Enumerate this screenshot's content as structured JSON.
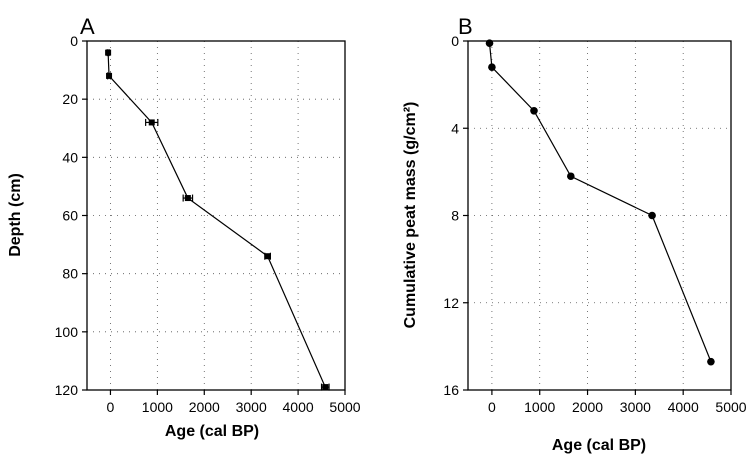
{
  "chart_data": [
    {
      "type": "line",
      "panel_label": "A",
      "xlabel": "Age (cal  BP)",
      "ylabel": "Depth (cm)",
      "xlim": [
        -500,
        5000
      ],
      "ylim": [
        0,
        120
      ],
      "y_inverted": true,
      "x_ticks": [
        0,
        1000,
        2000,
        3000,
        4000,
        5000
      ],
      "y_ticks": [
        0,
        20,
        40,
        60,
        80,
        100,
        120
      ],
      "x_tick_labels": [
        "0",
        "1000",
        "2000",
        "3000",
        "4000",
        "5000"
      ],
      "y_tick_labels": [
        "0",
        "20",
        "40",
        "60",
        "80",
        "100",
        "120"
      ],
      "grid": true,
      "marker": "square",
      "series": [
        {
          "x": [
            -50,
            -30,
            880,
            1650,
            3350,
            4580
          ],
          "y": [
            4,
            12,
            28,
            54,
            74,
            119
          ],
          "x_error": [
            20,
            30,
            130,
            100,
            60,
            80
          ]
        }
      ]
    },
    {
      "type": "line",
      "panel_label": "B",
      "xlabel": "Age (cal BP)",
      "ylabel": "Cumulative peat mass (g/cm²)",
      "xlim": [
        -500,
        5000
      ],
      "ylim": [
        0,
        16
      ],
      "y_inverted": true,
      "x_ticks": [
        0,
        1000,
        2000,
        3000,
        4000,
        5000
      ],
      "y_ticks": [
        0,
        4,
        8,
        12,
        16
      ],
      "x_tick_labels": [
        "0",
        "1000",
        "2000",
        "3000",
        "4000",
        "5000"
      ],
      "y_tick_labels": [
        "0",
        "4",
        "8",
        "12",
        "16"
      ],
      "grid": true,
      "marker": "circle",
      "series": [
        {
          "x": [
            -50,
            0,
            880,
            1650,
            3350,
            4580
          ],
          "y": [
            0.1,
            1.2,
            3.2,
            6.2,
            8.0,
            14.7
          ]
        }
      ]
    }
  ]
}
